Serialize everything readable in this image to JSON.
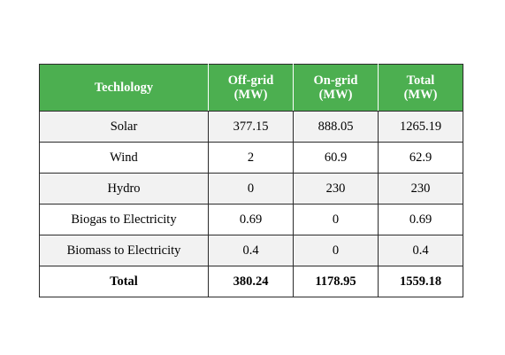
{
  "table": {
    "headers": {
      "technology": "Techlology",
      "off_grid": "Off-grid",
      "off_grid_unit": "(MW)",
      "on_grid": "On-grid",
      "on_grid_unit": "(MW)",
      "total": "Total",
      "total_unit": "(MW)"
    },
    "rows": [
      {
        "technology": "Solar",
        "off_grid": "377.15",
        "on_grid": "888.05",
        "total": "1265.19"
      },
      {
        "technology": "Wind",
        "off_grid": "2",
        "on_grid": "60.9",
        "total": "62.9"
      },
      {
        "technology": "Hydro",
        "off_grid": "0",
        "on_grid": "230",
        "total": "230"
      },
      {
        "technology": "Biogas to Electricity",
        "off_grid": "0.69",
        "on_grid": "0",
        "total": "0.69"
      },
      {
        "technology": "Biomass to Electricity",
        "off_grid": "0.4",
        "on_grid": "0",
        "total": "0.4"
      }
    ],
    "total_row": {
      "technology": "Total",
      "off_grid": "380.24",
      "on_grid": "1178.95",
      "total": "1559.18"
    },
    "colors": {
      "header_background": "#4caf50",
      "header_text": "#ffffff",
      "shaded_row": "#f2f2f2",
      "border": "#2b2b2b"
    }
  }
}
